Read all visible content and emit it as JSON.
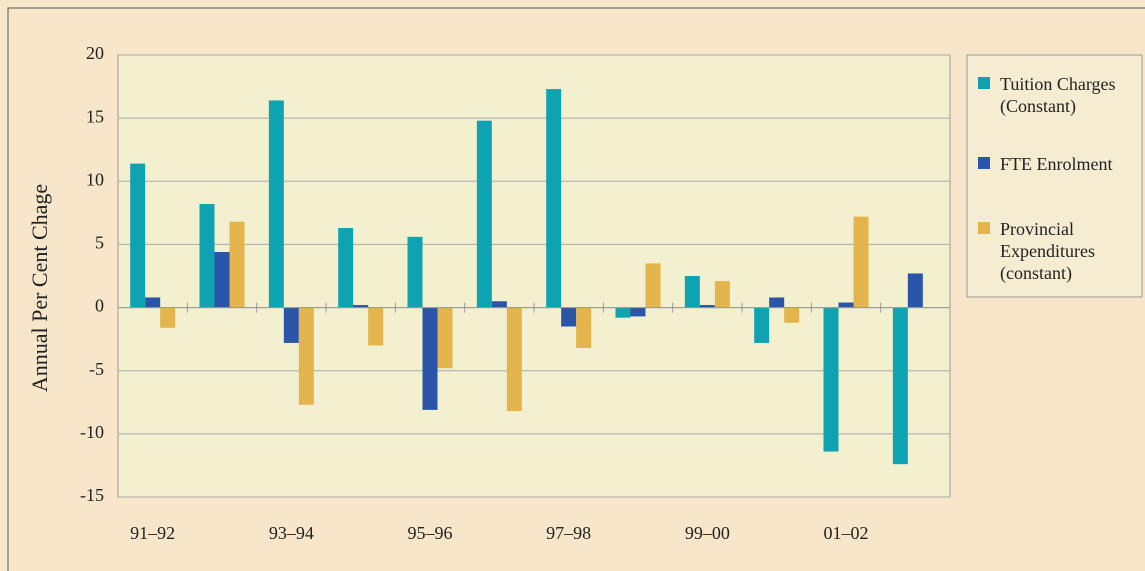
{
  "chart_data": {
    "type": "bar",
    "y_label": "Annual Per Cent Chage",
    "categories": [
      "91–92",
      null,
      "93–94",
      null,
      "95–96",
      null,
      "97–98",
      null,
      "99–00",
      null,
      "01–02",
      null
    ],
    "series": [
      {
        "name": "Tuition Charges (Constant)",
        "color": "#0fa3b1",
        "values": [
          11.4,
          8.2,
          16.4,
          6.3,
          5.6,
          14.8,
          17.3,
          -0.8,
          2.5,
          -2.8,
          -11.4,
          -12.4
        ]
      },
      {
        "name": "FTE Enrolment",
        "color": "#2b55a8",
        "values": [
          0.8,
          4.4,
          -2.8,
          0.2,
          -8.1,
          0.5,
          -1.5,
          -0.7,
          0.2,
          0.8,
          0.4,
          2.7
        ]
      },
      {
        "name": "Provincial Expenditures (constant)",
        "color": "#e3b54c",
        "values": [
          -1.6,
          6.8,
          -7.7,
          -3.0,
          -4.8,
          -8.2,
          -3.2,
          3.5,
          2.1,
          -1.2,
          7.2,
          null
        ]
      }
    ],
    "ylim": [
      -15,
      20
    ],
    "yticks": [
      -15,
      -10,
      -5,
      0,
      5,
      10,
      15,
      20
    ],
    "grid": true,
    "legend": "right"
  }
}
